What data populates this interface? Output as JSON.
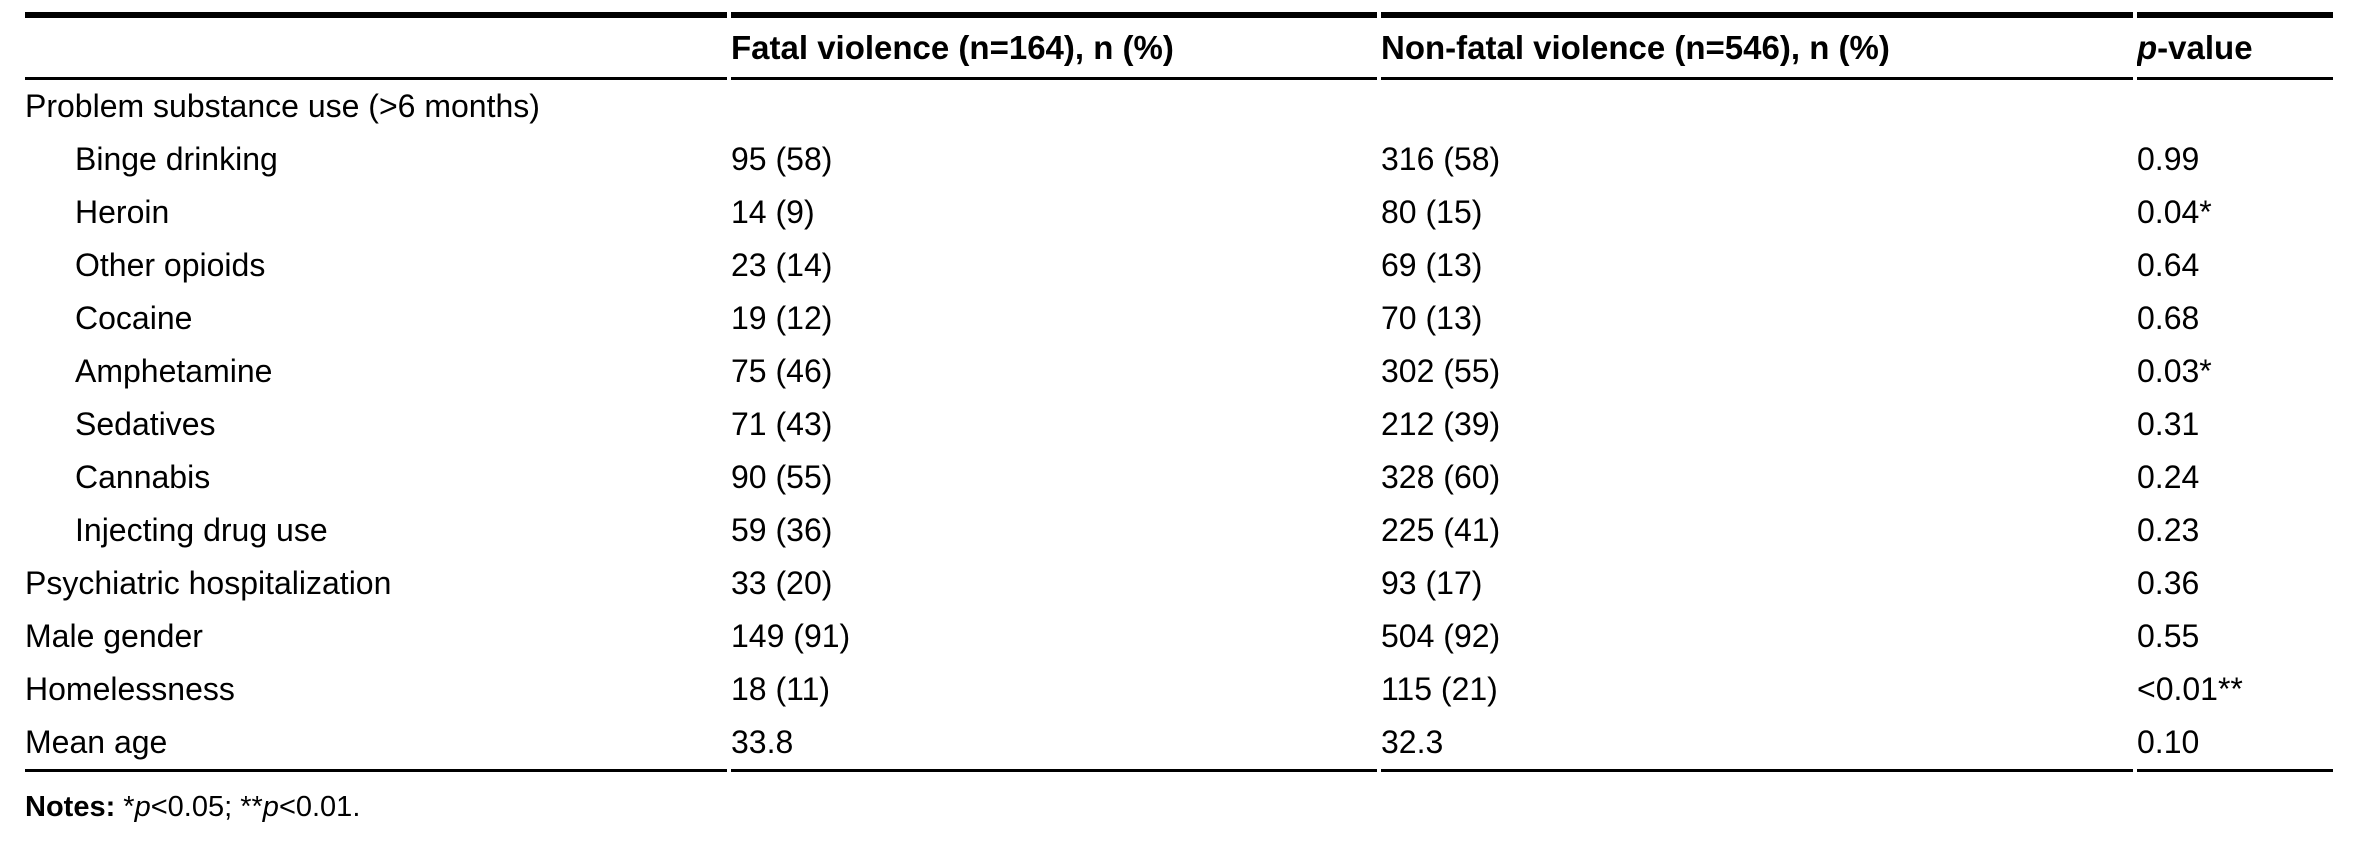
{
  "colors": {
    "text": "#000000",
    "background": "#ffffff",
    "rule": "#000000"
  },
  "table": {
    "headers": {
      "label": "",
      "fatal": "Fatal violence (n=164), n (%)",
      "nonfatal": "Non-fatal violence (n=546), n (%)",
      "p_italic": "p",
      "p_rest": "-value"
    },
    "rows": [
      {
        "label": "Problem substance use (>6 months)",
        "indent": false,
        "fatal": "",
        "nonfatal": "",
        "p": ""
      },
      {
        "label": "Binge drinking",
        "indent": true,
        "fatal": "95 (58)",
        "nonfatal": "316 (58)",
        "p": "0.99"
      },
      {
        "label": "Heroin",
        "indent": true,
        "fatal": "14 (9)",
        "nonfatal": "80 (15)",
        "p": "0.04*"
      },
      {
        "label": "Other opioids",
        "indent": true,
        "fatal": "23 (14)",
        "nonfatal": "69 (13)",
        "p": "0.64"
      },
      {
        "label": "Cocaine",
        "indent": true,
        "fatal": "19 (12)",
        "nonfatal": "70 (13)",
        "p": "0.68"
      },
      {
        "label": "Amphetamine",
        "indent": true,
        "fatal": "75 (46)",
        "nonfatal": "302 (55)",
        "p": "0.03*"
      },
      {
        "label": "Sedatives",
        "indent": true,
        "fatal": "71 (43)",
        "nonfatal": "212 (39)",
        "p": "0.31"
      },
      {
        "label": "Cannabis",
        "indent": true,
        "fatal": "90 (55)",
        "nonfatal": "328 (60)",
        "p": "0.24"
      },
      {
        "label": "Injecting drug use",
        "indent": true,
        "fatal": "59 (36)",
        "nonfatal": "225 (41)",
        "p": "0.23"
      },
      {
        "label": "Psychiatric hospitalization",
        "indent": false,
        "fatal": "33 (20)",
        "nonfatal": "93 (17)",
        "p": "0.36"
      },
      {
        "label": "Male gender",
        "indent": false,
        "fatal": "149 (91)",
        "nonfatal": "504 (92)",
        "p": "0.55"
      },
      {
        "label": "Homelessness",
        "indent": false,
        "fatal": "18 (11)",
        "nonfatal": "115 (21)",
        "p": "<0.01**"
      },
      {
        "label": "Mean age",
        "indent": false,
        "fatal": "33.8",
        "nonfatal": "32.3",
        "p": "0.10"
      }
    ]
  },
  "notes": {
    "label": "Notes:",
    "seg1": " *",
    "p1": "p",
    "seg2": "<0.05; **",
    "p2": "p",
    "seg3": "<0.01."
  }
}
